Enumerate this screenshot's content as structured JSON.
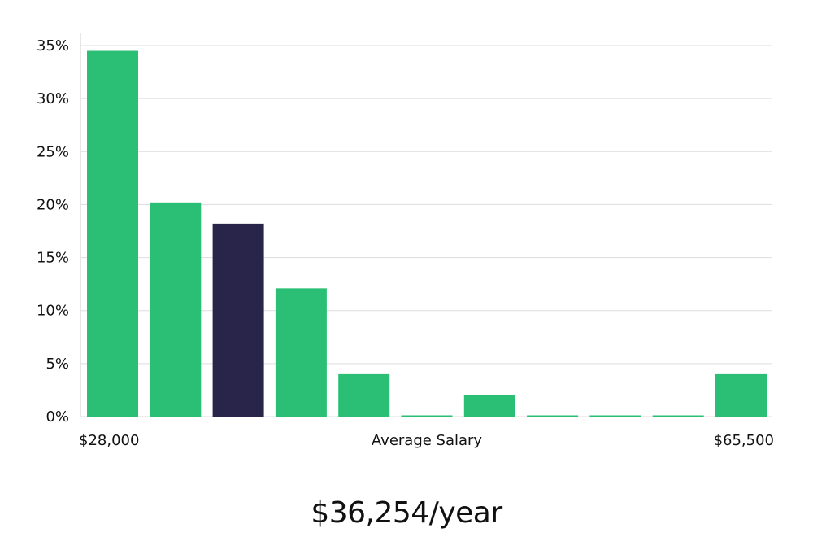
{
  "chart_data": {
    "type": "bar",
    "x_min_label": "$28,000",
    "x_max_label": "$65,500",
    "xlabel": "Average Salary",
    "ylim": [
      0,
      35
    ],
    "yticks": [
      0,
      5,
      10,
      15,
      20,
      25,
      30,
      35
    ],
    "ytick_labels": [
      "0%",
      "5%",
      "10%",
      "15%",
      "20%",
      "25%",
      "30%",
      "35%"
    ],
    "values": [
      34.5,
      20.2,
      18.2,
      12.1,
      4.0,
      0,
      2.0,
      0,
      0,
      0,
      4.0
    ],
    "highlight_index": 2,
    "grid": true,
    "colors": {
      "bar": "#2abf74",
      "highlight": "#29244a",
      "grid": "#dddddd",
      "axis": "#cccccc"
    }
  },
  "salary_headline": "$36,254/year"
}
